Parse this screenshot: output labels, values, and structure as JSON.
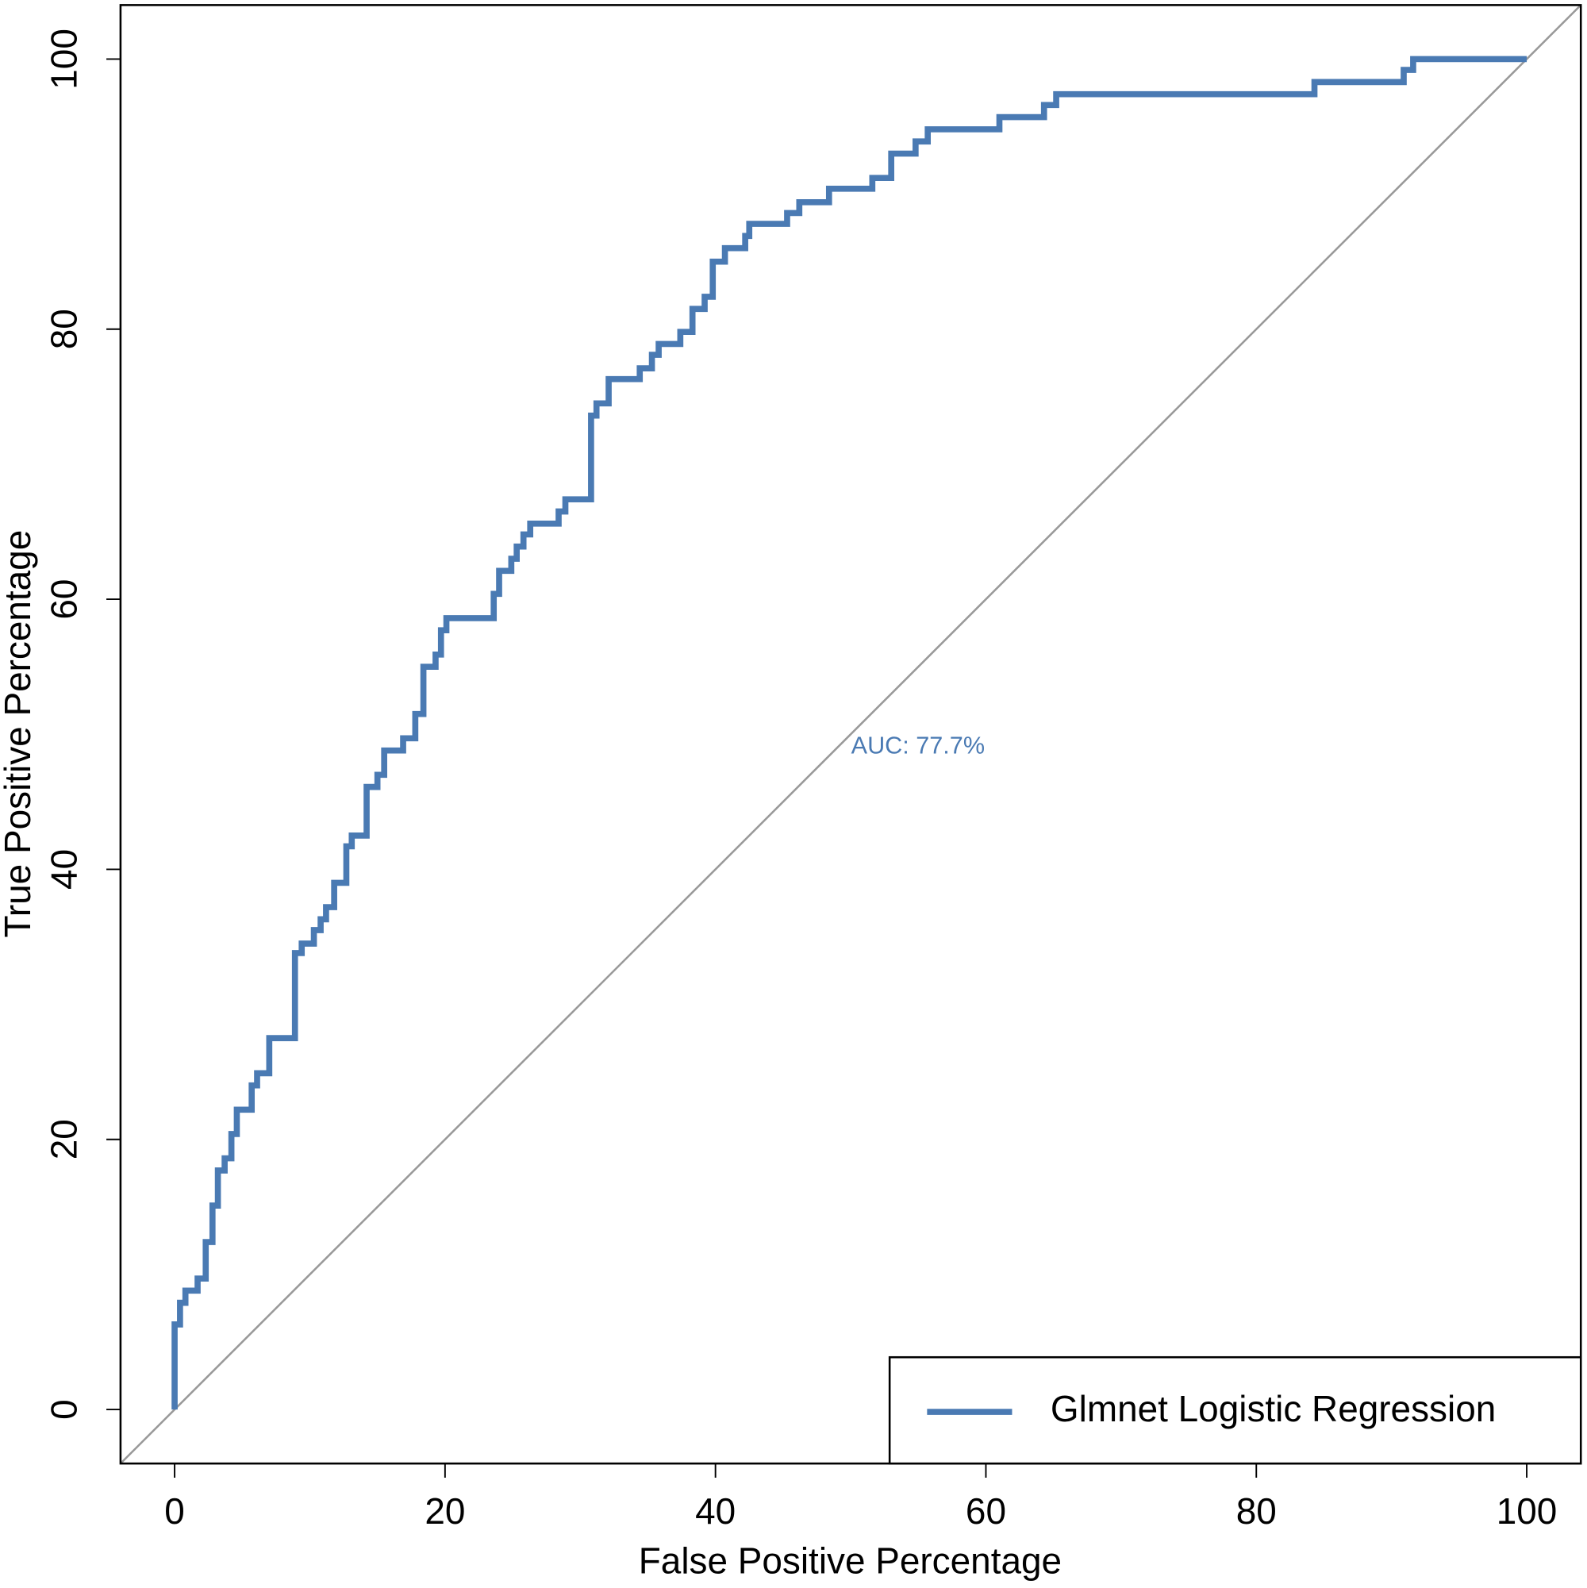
{
  "chart_data": {
    "type": "line",
    "xlabel": "False Positive Percentage",
    "ylabel": "True Positive Percentage",
    "annotation": "AUC: 77.7%",
    "legend": "bottomright",
    "xlim": [
      -4,
      104
    ],
    "ylim": [
      -4,
      104
    ],
    "xticks": [
      0,
      20,
      40,
      60,
      80,
      100
    ],
    "yticks": [
      0,
      20,
      40,
      60,
      80,
      100
    ],
    "series": [
      {
        "name": "Glmnet Logistic Regression",
        "color": "#4a7ab3",
        "x": [
          0,
          0,
          0.4,
          0.4,
          0.8,
          0.8,
          1.7,
          1.7,
          2.3,
          2.3,
          2.8,
          2.8,
          3.2,
          3.2,
          3.7,
          3.7,
          4.2,
          4.2,
          4.6,
          4.6,
          5.7,
          5.7,
          6.1,
          6.1,
          7.0,
          7.0,
          8.9,
          8.9,
          9.4,
          9.4,
          10.3,
          10.3,
          10.8,
          10.8,
          11.2,
          11.2,
          11.8,
          11.8,
          12.7,
          12.7,
          13.1,
          13.1,
          14.2,
          14.2,
          15.0,
          15.0,
          15.5,
          15.5,
          16.9,
          16.9,
          17.8,
          17.8,
          18.4,
          18.4,
          19.3,
          19.3,
          19.7,
          19.7,
          20.1,
          20.1,
          23.6,
          23.6,
          24.0,
          24.0,
          24.9,
          24.9,
          25.3,
          25.3,
          25.8,
          25.8,
          26.3,
          26.3,
          28.4,
          28.4,
          28.9,
          28.9,
          30.8,
          30.8,
          31.2,
          31.2,
          32.1,
          32.1,
          34.4,
          34.4,
          35.3,
          35.3,
          35.8,
          35.8,
          37.4,
          37.4,
          38.3,
          38.3,
          39.2,
          39.2,
          39.8,
          39.8,
          40.7,
          40.7,
          42.2,
          42.2,
          42.5,
          42.5,
          45.3,
          45.3,
          46.2,
          46.2,
          48.4,
          48.4,
          51.6,
          51.6,
          53.0,
          53.0,
          54.8,
          54.8,
          55.7,
          55.7,
          61.0,
          61.0,
          64.3,
          64.3,
          65.2,
          65.2,
          84.3,
          84.3,
          90.9,
          90.9,
          91.6,
          91.6,
          100
        ],
        "values": [
          0,
          6.3,
          6.3,
          7.9,
          7.9,
          8.8,
          8.8,
          9.7,
          9.7,
          12.4,
          12.4,
          15.1,
          15.1,
          17.7,
          17.7,
          18.6,
          18.6,
          20.4,
          20.4,
          22.2,
          22.2,
          24.0,
          24.0,
          24.9,
          24.9,
          27.5,
          27.5,
          33.8,
          33.8,
          34.5,
          34.5,
          35.5,
          35.5,
          36.3,
          36.3,
          37.2,
          37.2,
          39.0,
          39.0,
          41.7,
          41.7,
          42.5,
          42.5,
          46.1,
          46.1,
          47.0,
          47.0,
          48.8,
          48.8,
          49.7,
          49.7,
          51.5,
          51.5,
          55.0,
          55.0,
          55.9,
          55.9,
          57.7,
          57.7,
          58.6,
          58.6,
          60.4,
          60.4,
          62.1,
          62.1,
          63.0,
          63.0,
          63.9,
          63.9,
          64.8,
          64.8,
          65.6,
          65.6,
          66.5,
          66.5,
          67.4,
          67.4,
          73.6,
          73.6,
          74.5,
          74.5,
          76.3,
          76.3,
          77.1,
          77.1,
          78.1,
          78.1,
          78.9,
          78.9,
          79.8,
          79.8,
          81.5,
          81.5,
          82.4,
          82.4,
          85.0,
          85.0,
          86.0,
          86.0,
          86.9,
          86.9,
          87.8,
          87.8,
          88.6,
          88.6,
          89.4,
          89.4,
          90.4,
          90.4,
          91.2,
          91.2,
          93.0,
          93.0,
          93.9,
          93.9,
          94.8,
          94.8,
          95.7,
          95.7,
          96.6,
          96.6,
          97.4,
          97.4,
          98.3,
          98.3,
          99.2,
          99.2,
          100,
          100
        ]
      }
    ]
  }
}
